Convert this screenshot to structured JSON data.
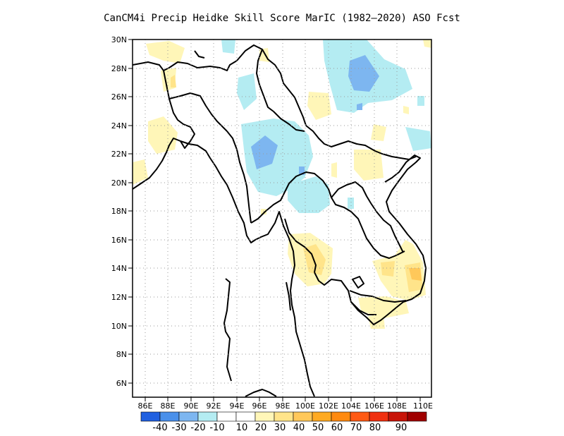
{
  "title": "CanCM4i Precip Heidke Skill Score MarIC (1982–2020) ASO Fcst",
  "lat_ticks": [
    "30N",
    "28N",
    "26N",
    "24N",
    "22N",
    "20N",
    "18N",
    "16N",
    "14N",
    "12N",
    "10N",
    "8N",
    "6N"
  ],
  "lon_ticks": [
    "86E",
    "88E",
    "90E",
    "92E",
    "94E",
    "96E",
    "98E",
    "100E",
    "102E",
    "104E",
    "106E",
    "108E",
    "110E"
  ],
  "colorbar": {
    "colors": [
      "#2060e0",
      "#4a90ea",
      "#7db6f0",
      "#b4ecf2",
      "#ffffff",
      "#ffffff",
      "#fff6b8",
      "#ffe48a",
      "#ffc85a",
      "#ffaa22",
      "#ff8a10",
      "#ff5a14",
      "#f03010",
      "#c81408",
      "#a00000"
    ],
    "labels": [
      "-40",
      "-30",
      "-20",
      "-10",
      "10",
      "20",
      "30",
      "40",
      "50",
      "60",
      "70",
      "80",
      "90"
    ]
  }
}
